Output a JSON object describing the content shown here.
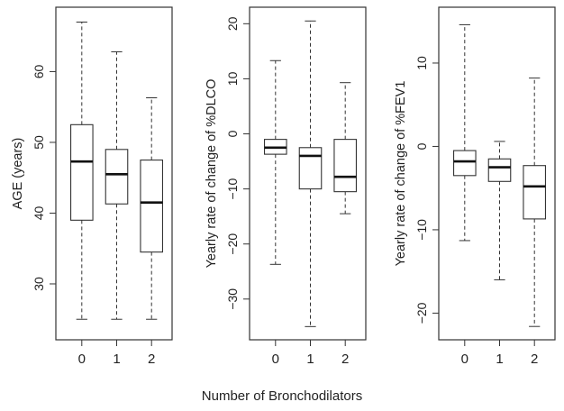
{
  "figure": {
    "xlabel": "Number of Bronchodilators"
  },
  "chart_data": [
    {
      "type": "box",
      "ylabel": "AGE (years)",
      "categories": [
        "0",
        "1",
        "2"
      ],
      "ylim": [
        22.1,
        69.1
      ],
      "yticks": [
        30,
        40,
        50,
        60
      ],
      "boxes": [
        {
          "min": 25,
          "q1": 39,
          "median": 47.3,
          "q3": 52.5,
          "max": 67
        },
        {
          "min": 25,
          "q1": 41.3,
          "median": 45.5,
          "q3": 49,
          "max": 62.8
        },
        {
          "min": 25,
          "q1": 34.5,
          "median": 41.5,
          "q3": 47.5,
          "max": 56.3
        }
      ]
    },
    {
      "type": "box",
      "ylabel": "Yearly rate of change of %DLCO",
      "categories": [
        "0",
        "1",
        "2"
      ],
      "ylim": [
        -37.4,
        23.0
      ],
      "yticks": [
        -30,
        -20,
        -10,
        0,
        10,
        20
      ],
      "boxes": [
        {
          "min": -23.7,
          "q1": -3.7,
          "median": -2.5,
          "q3": -1.0,
          "max": 13.3
        },
        {
          "min": -35,
          "q1": -10,
          "median": -4,
          "q3": -2.5,
          "max": 20.5
        },
        {
          "min": -14.5,
          "q1": -10.5,
          "median": -7.8,
          "q3": -1.0,
          "max": 9.3
        }
      ]
    },
    {
      "type": "box",
      "ylabel": "Yearly rate of change of %FEV1",
      "categories": [
        "0",
        "1",
        "2"
      ],
      "ylim": [
        -23.2,
        16.7
      ],
      "yticks": [
        -20,
        -10,
        0,
        10
      ],
      "boxes": [
        {
          "min": -11.3,
          "q1": -3.5,
          "median": -1.8,
          "q3": -0.5,
          "max": 14.6
        },
        {
          "min": -16,
          "q1": -4.2,
          "median": -2.5,
          "q3": -1.5,
          "max": 0.6
        },
        {
          "min": -21.6,
          "q1": -8.7,
          "median": -4.8,
          "q3": -2.3,
          "max": 8.2
        }
      ]
    }
  ]
}
